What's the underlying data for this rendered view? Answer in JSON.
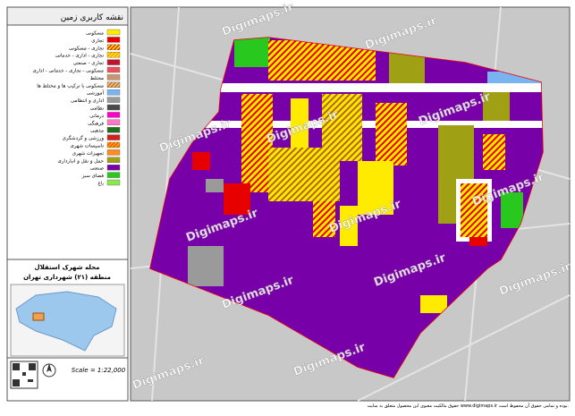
{
  "legend": {
    "title": "نقشه کاربری زمین",
    "items": [
      {
        "label": "مسکونی",
        "color": "#ffeb00"
      },
      {
        "label": "تجاری",
        "color": "#e60000"
      },
      {
        "label": "تجاری - مسکونی",
        "color": "#ffeb00",
        "hatch": "#e60000"
      },
      {
        "label": "تجاری - اداری - خدماتی",
        "color": "#ffeb00",
        "hatch": "#ff8c00"
      },
      {
        "label": "تجاری - صنعتی",
        "color": "#c0142c"
      },
      {
        "label": "مسکونی - تجاری - خدماتی - اداری",
        "color": "#e8505b"
      },
      {
        "label": "مختلط",
        "color": "#c8966e"
      },
      {
        "label": "مسکونی با ترکیب ها و مختلط ها",
        "color": "#f0c080",
        "hatch": "#b46420"
      },
      {
        "label": "آموزشی",
        "color": "#7ab4f0"
      },
      {
        "label": "اداری و انتظامی",
        "color": "#9a9a9a"
      },
      {
        "label": "نظامی",
        "color": "#4a4a4a"
      },
      {
        "label": "درمانی",
        "color": "#ff00c8"
      },
      {
        "label": "فرهنگی",
        "color": "#ff78c8"
      },
      {
        "label": "مذهبی",
        "color": "#1e6e1e"
      },
      {
        "label": "ورزشی و گردشگری",
        "color": "#d21e1e"
      },
      {
        "label": "تاسیسات شهری",
        "color": "#ff5000",
        "hatch": "#ffc800"
      },
      {
        "label": "تجهیزات شهری",
        "color": "#ff8c1e"
      },
      {
        "label": "حمل و نقل و انبارداری",
        "color": "#a0a014"
      },
      {
        "label": "صنعتی",
        "color": "#7800a8"
      },
      {
        "label": "فضای سبز",
        "color": "#28c81e"
      },
      {
        "label": "باغ",
        "color": "#8ce650"
      }
    ]
  },
  "area": {
    "title": "محله شهرک استقلال",
    "subtitle": "منطقه (۲۱) شهرداری تهران"
  },
  "scale": "Scale = 1:22,000",
  "watermark": "Digimaps.ir",
  "footer": "حقوق مالکیت معنوی این محصول متعلق به سایت www.digimaps.ir بوده و تمامی حقوق آن محفوظ است."
}
